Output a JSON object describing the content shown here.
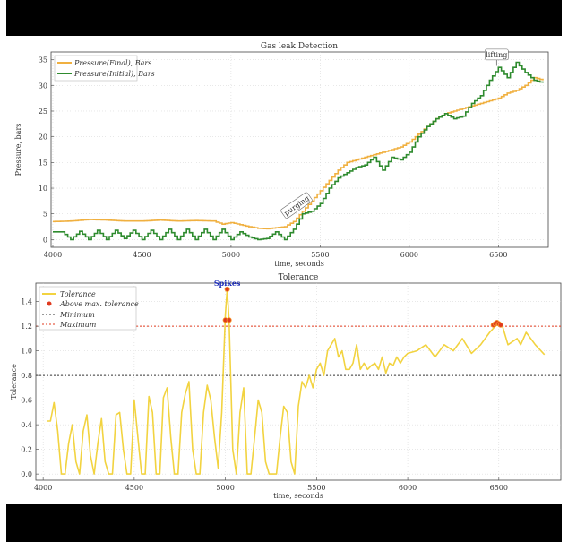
{
  "colors": {
    "final": "#f0b040",
    "initial": "#2e8b2e",
    "tolerance": "#f2d340",
    "above": "#e03a1e",
    "minimum": "#333333",
    "maximum": "#e03a1e",
    "annotation": "#1a2bb8"
  },
  "chart_data": [
    {
      "type": "line",
      "title": "Gas leak Detection",
      "xlabel": "time, seconds",
      "ylabel": "Pressure, bars",
      "xlim": [
        3990,
        6780
      ],
      "ylim": [
        -1.5,
        36.5
      ],
      "xticks": [
        "4000",
        "4500",
        "5000",
        "5500",
        "6000",
        "6500"
      ],
      "yticks": [
        "0",
        "5",
        "10",
        "15",
        "20",
        "25",
        "30",
        "35"
      ],
      "grid": true,
      "legend": "top-left",
      "annotations": [
        {
          "text": "purging",
          "x": 5370,
          "y": 6.5
        },
        {
          "text": "lifting",
          "x": 6490,
          "y": 36
        }
      ],
      "series": [
        {
          "name": "Pressure(Final), Bars",
          "x": [
            4000,
            4100,
            4200,
            4300,
            4400,
            4500,
            4600,
            4700,
            4800,
            4900,
            4950,
            5000,
            5050,
            5100,
            5150,
            5200,
            5250,
            5300,
            5350,
            5400,
            5450,
            5500,
            5550,
            5600,
            5650,
            5700,
            5750,
            5800,
            5850,
            5900,
            5950,
            6000,
            6050,
            6100,
            6150,
            6200,
            6250,
            6300,
            6350,
            6400,
            6450,
            6500,
            6550,
            6600,
            6650,
            6700,
            6750
          ],
          "values": [
            3.5,
            3.6,
            3.9,
            3.8,
            3.6,
            3.6,
            3.8,
            3.6,
            3.7,
            3.6,
            3.0,
            3.3,
            2.9,
            2.5,
            2.2,
            2.1,
            2.3,
            2.5,
            3.5,
            5.5,
            7.5,
            9.5,
            11.5,
            13.5,
            15.0,
            15.5,
            16.0,
            16.5,
            17.0,
            17.5,
            18.0,
            19.0,
            20.5,
            22.0,
            23.5,
            24.5,
            25.0,
            25.5,
            26.0,
            26.5,
            27.0,
            27.5,
            28.5,
            29.0,
            30.0,
            31.5,
            31.0
          ]
        },
        {
          "name": "Pressure(Initial), Bars",
          "x": [
            4000,
            4050,
            4100,
            4150,
            4200,
            4250,
            4300,
            4350,
            4400,
            4450,
            4500,
            4550,
            4600,
            4650,
            4700,
            4750,
            4800,
            4850,
            4900,
            4950,
            5000,
            5050,
            5100,
            5150,
            5200,
            5250,
            5300,
            5350,
            5400,
            5450,
            5500,
            5550,
            5600,
            5650,
            5700,
            5750,
            5800,
            5850,
            5900,
            5950,
            6000,
            6050,
            6100,
            6150,
            6200,
            6250,
            6300,
            6350,
            6400,
            6450,
            6500,
            6550,
            6600,
            6650,
            6700,
            6750
          ],
          "values": [
            1.5,
            1.5,
            0.0,
            1.6,
            0.0,
            1.8,
            0.0,
            1.8,
            0.2,
            1.8,
            0.0,
            1.8,
            0.0,
            2.0,
            0.0,
            2.0,
            0.0,
            2.0,
            0.0,
            2.0,
            0.0,
            1.5,
            0.5,
            0.0,
            0.2,
            1.5,
            0.0,
            2.0,
            5.0,
            5.5,
            7.0,
            10.0,
            12.0,
            13.0,
            14.0,
            14.5,
            16.0,
            13.5,
            16.0,
            15.5,
            17.0,
            20.0,
            22.0,
            23.5,
            24.5,
            23.5,
            24.0,
            26.5,
            28.0,
            31.0,
            33.5,
            31.5,
            34.5,
            32.5,
            31.0,
            30.5
          ]
        }
      ]
    },
    {
      "type": "line",
      "title": "Tolerance",
      "xlabel": "time, seconds",
      "ylabel": "Tolerance",
      "xlim": [
        3960,
        6840
      ],
      "ylim": [
        -0.05,
        1.55
      ],
      "xticks": [
        "4000",
        "4500",
        "5000",
        "5500",
        "6000",
        "6500"
      ],
      "yticks": [
        "0.0",
        "0.2",
        "0.4",
        "0.6",
        "0.8",
        "1.0",
        "1.2",
        "1.4"
      ],
      "grid": true,
      "legend": "top-left",
      "annotations": [
        {
          "text": "Spikes",
          "x": 5010,
          "y": 1.52
        }
      ],
      "series": [
        {
          "name": "Tolerance",
          "x": [
            4020,
            4040,
            4060,
            4080,
            4100,
            4120,
            4140,
            4160,
            4180,
            4200,
            4220,
            4240,
            4260,
            4280,
            4300,
            4320,
            4340,
            4360,
            4380,
            4400,
            4420,
            4440,
            4460,
            4480,
            4500,
            4520,
            4540,
            4560,
            4580,
            4600,
            4620,
            4640,
            4660,
            4680,
            4700,
            4720,
            4740,
            4760,
            4780,
            4800,
            4820,
            4840,
            4860,
            4880,
            4900,
            4920,
            4940,
            4960,
            4980,
            5000,
            5010,
            5020,
            5040,
            5060,
            5080,
            5100,
            5120,
            5140,
            5160,
            5180,
            5200,
            5220,
            5240,
            5260,
            5280,
            5300,
            5320,
            5340,
            5360,
            5380,
            5400,
            5420,
            5440,
            5460,
            5480,
            5500,
            5520,
            5540,
            5560,
            5580,
            5600,
            5620,
            5640,
            5660,
            5680,
            5700,
            5720,
            5740,
            5760,
            5780,
            5800,
            5820,
            5840,
            5860,
            5880,
            5900,
            5920,
            5940,
            5960,
            5980,
            6000,
            6050,
            6100,
            6150,
            6200,
            6250,
            6300,
            6350,
            6400,
            6450,
            6480,
            6500,
            6520,
            6550,
            6600,
            6620,
            6650,
            6700,
            6750
          ],
          "values": [
            0.43,
            0.43,
            0.58,
            0.35,
            0.0,
            0.0,
            0.25,
            0.4,
            0.1,
            0.0,
            0.35,
            0.48,
            0.15,
            0.0,
            0.25,
            0.45,
            0.1,
            0.0,
            0.0,
            0.48,
            0.5,
            0.2,
            0.0,
            0.0,
            0.6,
            0.3,
            0.0,
            0.0,
            0.63,
            0.5,
            0.0,
            0.0,
            0.62,
            0.7,
            0.3,
            0.0,
            0.0,
            0.5,
            0.65,
            0.75,
            0.2,
            0.0,
            0.0,
            0.5,
            0.72,
            0.6,
            0.3,
            0.05,
            0.5,
            1.3,
            1.5,
            1.25,
            0.2,
            0.0,
            0.5,
            0.7,
            0.0,
            0.0,
            0.3,
            0.6,
            0.5,
            0.1,
            0.0,
            0.0,
            0.0,
            0.3,
            0.55,
            0.5,
            0.1,
            0.0,
            0.55,
            0.75,
            0.7,
            0.8,
            0.7,
            0.85,
            0.9,
            0.8,
            1.0,
            1.05,
            1.1,
            0.95,
            1.0,
            0.85,
            0.85,
            0.9,
            1.05,
            0.85,
            0.9,
            0.85,
            0.88,
            0.9,
            0.85,
            0.95,
            0.82,
            0.9,
            0.88,
            0.95,
            0.9,
            0.95,
            0.98,
            1.0,
            1.05,
            0.95,
            1.05,
            1.0,
            1.1,
            0.98,
            1.05,
            1.15,
            1.2,
            1.22,
            1.2,
            1.05,
            1.1,
            1.05,
            1.15,
            1.05,
            0.97
          ]
        },
        {
          "name": "Above max. tolerance",
          "type": "scatter",
          "x": [
            5000,
            5010,
            5020,
            6470,
            6480,
            6490,
            6500,
            6510
          ],
          "values": [
            1.25,
            1.5,
            1.25,
            1.21,
            1.22,
            1.23,
            1.22,
            1.21
          ]
        }
      ],
      "reference_lines": [
        {
          "name": "Minimum",
          "y": 0.8
        },
        {
          "name": "Maximum",
          "y": 1.2
        }
      ]
    }
  ]
}
